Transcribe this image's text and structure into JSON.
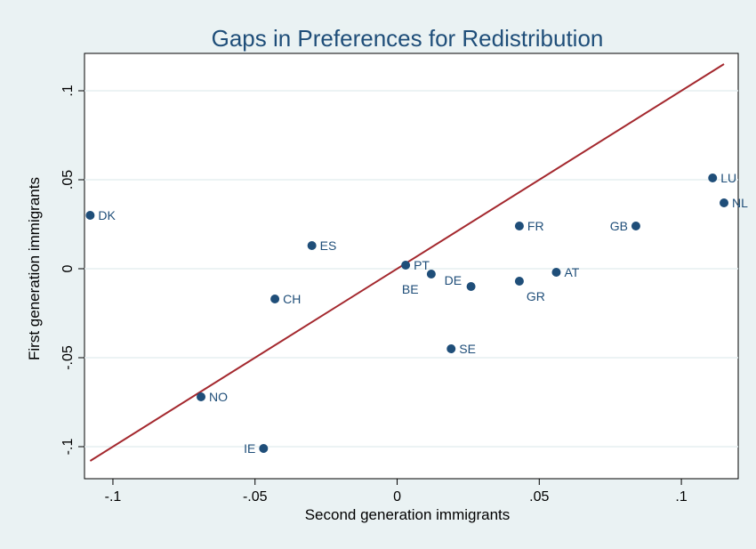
{
  "chart_data": {
    "type": "scatter",
    "title": "Gaps in Preferences for Redistribution",
    "xlabel": "Second generation immigrants",
    "ylabel": "First generation immigrants",
    "xlim": [
      -0.11,
      0.12
    ],
    "ylim": [
      -0.118,
      0.121
    ],
    "xticks": [
      -0.1,
      -0.05,
      0,
      0.05,
      0.1
    ],
    "xtick_labels": [
      "-.1",
      "-.05",
      "0",
      ".05",
      ".1"
    ],
    "yticks": [
      -0.1,
      -0.05,
      0,
      0.05,
      0.1
    ],
    "ytick_labels": [
      "-.1",
      "-.05",
      "0",
      ".05",
      ".1"
    ],
    "grid": true,
    "points": [
      {
        "label": "DK",
        "x": -0.108,
        "y": 0.03
      },
      {
        "label": "ES",
        "x": -0.03,
        "y": 0.013
      },
      {
        "label": "CH",
        "x": -0.043,
        "y": -0.017
      },
      {
        "label": "NO",
        "x": -0.069,
        "y": -0.072
      },
      {
        "label": "IE",
        "x": -0.047,
        "y": -0.101
      },
      {
        "label": "PT",
        "x": 0.003,
        "y": 0.002
      },
      {
        "label": "BE",
        "x": 0.012,
        "y": -0.003
      },
      {
        "label": "DE",
        "x": 0.026,
        "y": -0.01
      },
      {
        "label": "SE",
        "x": 0.019,
        "y": -0.045
      },
      {
        "label": "FR",
        "x": 0.043,
        "y": 0.024
      },
      {
        "label": "GR",
        "x": 0.043,
        "y": -0.007
      },
      {
        "label": "AT",
        "x": 0.056,
        "y": -0.002
      },
      {
        "label": "GB",
        "x": 0.084,
        "y": 0.024
      },
      {
        "label": "LU",
        "x": 0.111,
        "y": 0.051
      },
      {
        "label": "NL",
        "x": 0.115,
        "y": 0.037
      }
    ],
    "reference_line": {
      "x": [
        -0.108,
        0.115
      ],
      "y": [
        -0.108,
        0.115
      ]
    },
    "colors": {
      "background": "#eaf2f3",
      "plot_background": "#ffffff",
      "marker": "#1f4e79",
      "line": "#a4282e",
      "grid": "#e6eff1",
      "title": "#1f4e79"
    }
  }
}
